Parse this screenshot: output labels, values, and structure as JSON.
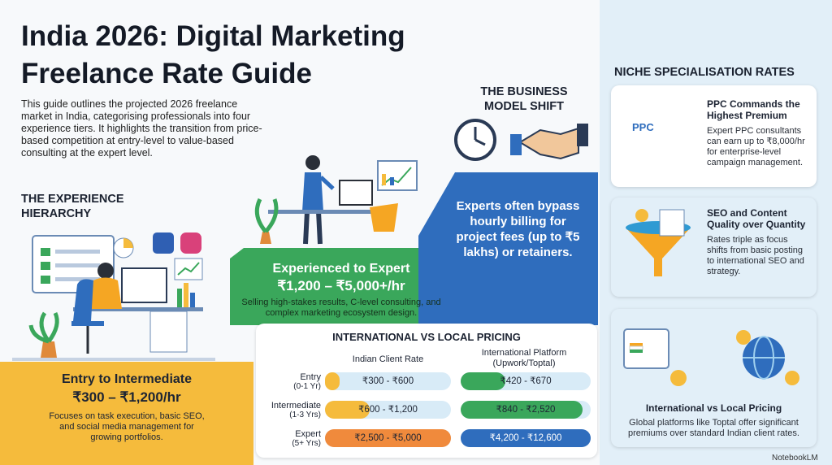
{
  "header": {
    "title_lines": [
      "India 2026: Digital Marketing",
      "Freelance Rate Guide"
    ],
    "intro": "This guide outlines the projected 2026 freelance market in India, categorising professionals into four experience tiers. It highlights the transition from price-based competition at entry-level to value-based consulting at the expert level."
  },
  "hierarchy": {
    "heading": "THE EXPERIENCE HIERARCHY",
    "tiers": [
      {
        "name": "Entry to Intermediate",
        "rate": "₹300 – ₹1,200/hr",
        "text": "Focuses on task execution, basic SEO, and social media management for growing portfolios."
      },
      {
        "name": "Experienced to Expert",
        "rate": "₹1,200 – ₹5,000+/hr",
        "text": "Selling high-stakes results, C-level consulting, and complex marketing ecosystem design."
      }
    ]
  },
  "business_model": {
    "heading": "THE BUSINESS MODEL SHIFT",
    "text": "Experts often bypass hourly billing for project fees (up to ₹5 lakhs) or retainers."
  },
  "pricing_table": {
    "title": "INTERNATIONAL VS LOCAL PRICING",
    "columns": [
      "Indian Client Rate",
      "International Platform (Upwork/Toptal)"
    ],
    "rows": [
      {
        "level": "Entry",
        "years": "(0-1 Yr)",
        "indian": "₹300 - ₹600",
        "international": "₹420 - ₹670"
      },
      {
        "level": "Intermediate",
        "years": "(1-3 Yrs)",
        "indian": "₹600 - ₹1,200",
        "international": "₹840 - ₹2,520"
      },
      {
        "level": "Expert",
        "years": "(5+ Yrs)",
        "indian": "₹2,500 - ₹5,000",
        "international": "₹4,200 - ₹12,600"
      }
    ]
  },
  "niche": {
    "heading": "NICHE SPECIALISATION RATES",
    "icon_label": "PPC",
    "cards": [
      {
        "title": "PPC Commands the Highest Premium",
        "text": "Expert PPC consultants can earn up to ₹8,000/hr for enterprise-level campaign management."
      },
      {
        "title": "SEO and Content Quality over Quantity",
        "text": "Rates triple as focus shifts from basic posting to international SEO and strategy."
      },
      {
        "title": "International vs Local Pricing",
        "text": "Global platforms like Toptal offer significant premiums over standard Indian client rates."
      }
    ]
  },
  "footer": {
    "brand": "NotebookLM"
  }
}
